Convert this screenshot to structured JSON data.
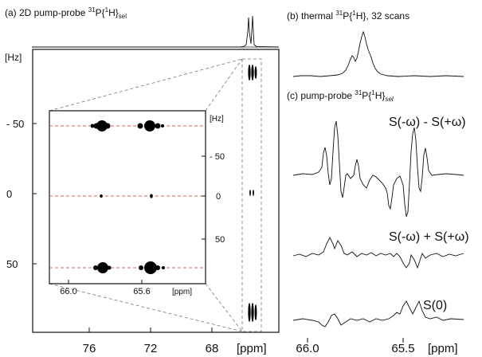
{
  "panel_a": {
    "title": "(a) 2D pump-probe ",
    "title_sup": "31",
    "title_mid": "P{",
    "title_sup2": "1",
    "title_end": "H}",
    "title_sub": "sel",
    "y_unit": "[Hz]",
    "y_ticks": [
      "- 50",
      "0",
      "50"
    ],
    "x_ticks": [
      "76",
      "72",
      "68"
    ],
    "x_unit": "[ppm]"
  },
  "inset": {
    "y_unit": "[Hz]",
    "y_ticks": [
      "- 50",
      "0",
      "50"
    ],
    "x_ticks": [
      "66.0",
      "65.6"
    ],
    "x_unit": "[ppm]",
    "guide_color": "#e06060"
  },
  "panel_b": {
    "title": "(b) thermal ",
    "title_sup": "31",
    "title_mid": "P{",
    "title_sup2": "1",
    "title_end": "H}, 32 scans"
  },
  "panel_c": {
    "title": "(c) pump-probe ",
    "title_sup": "31",
    "title_mid": "P{",
    "title_sup2": "1",
    "title_end": "H}",
    "title_sub": "sel",
    "trace1": "S(-ω) - S(+ω)",
    "trace2": "S(-ω) + S(+ω)",
    "trace3": "S(0)"
  },
  "right_axis": {
    "x_ticks": [
      "66.0",
      "65.5"
    ],
    "x_unit": "[ppm]"
  }
}
